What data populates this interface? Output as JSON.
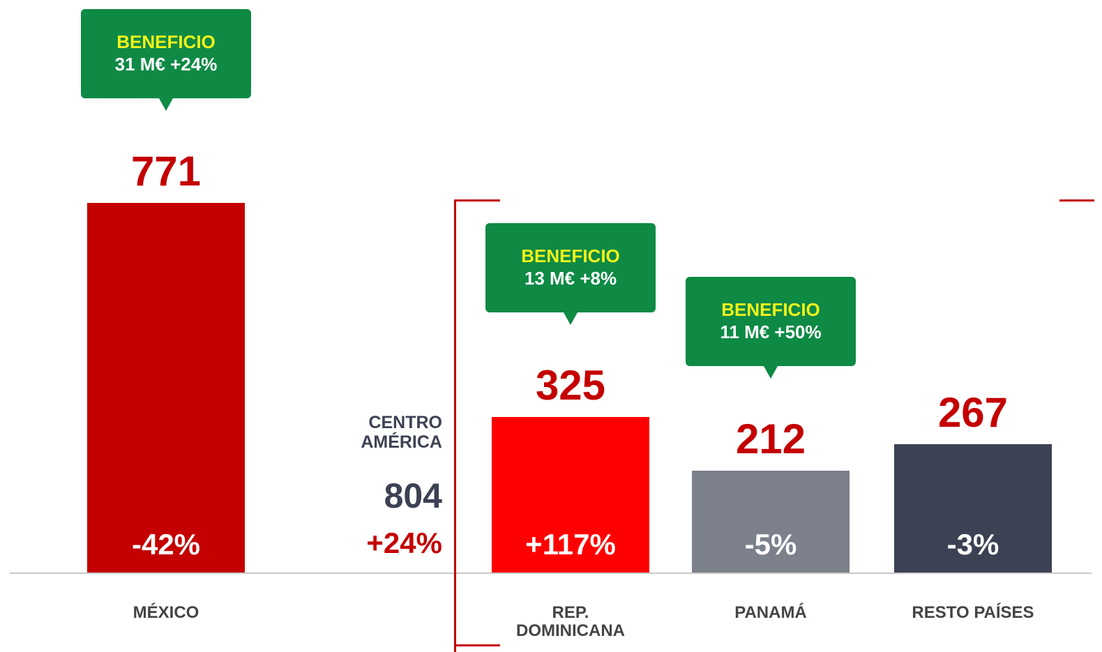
{
  "chart_data": {
    "type": "bar",
    "categories": [
      "MÉXICO",
      "REP. DOMINICANA",
      "PANAMÁ",
      "RESTO PAÍSES"
    ],
    "values": [
      771,
      325,
      212,
      267
    ],
    "colors": [
      "#c40000",
      "#ff0000",
      "#7b808a",
      "#3c4153"
    ],
    "changes": [
      "-42%",
      "+117%",
      "-5%",
      "-3%"
    ],
    "callouts": [
      {
        "title": "BENEFICIO",
        "text": "31 M€ +24%"
      },
      {
        "title": "BENEFICIO",
        "text": "13 M€ +8%"
      },
      {
        "title": "BENEFICIO",
        "text": "11 M€ +50%"
      },
      null
    ],
    "group": {
      "label": "CENTRO AMÉRICA",
      "value": 804,
      "change": "+24%"
    }
  }
}
